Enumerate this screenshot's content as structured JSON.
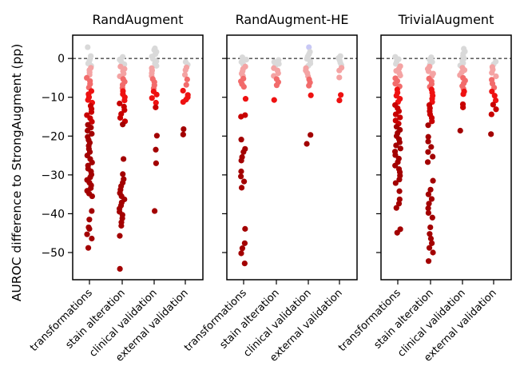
{
  "ylabel": "AUROC difference to StrongAugment (pp)",
  "categories": [
    "transformations",
    "stain alteration",
    "clinical validation",
    "external validation"
  ],
  "yticks": [
    0,
    -10,
    -20,
    -30,
    -40,
    -50
  ],
  "colors": {
    "grey": "#d9d9d9",
    "pink": "#f4a3a3",
    "salmon": "#f26b6b",
    "red": "#ee1111",
    "crimson": "#c80000",
    "darkred": "#a30000",
    "lavender": "#c8c8f5"
  },
  "chart_data": [
    {
      "type": "scatter",
      "title": "RandAugment",
      "ylim": [
        -57,
        6
      ],
      "series": [
        {
          "category": "transformations",
          "values": [
            2.9,
            0.6,
            -0.3,
            -0.8,
            -1.3,
            -1.9,
            -2.4,
            -3.0,
            -3.6,
            -4.2,
            -5.0,
            -5.8,
            -6.6,
            -7.5,
            -8.4,
            -9.2,
            -10.0,
            -10.7,
            -11.4,
            -12.2,
            -13.0,
            -13.8,
            -14.6,
            -15.4,
            -16.3,
            -17.1,
            -17.8,
            -18.6,
            -19.4,
            -20.2,
            -21.0,
            -21.7,
            -22.5,
            -23.3,
            -24.1,
            -25.0,
            -25.9,
            -26.8,
            -27.6,
            -28.4,
            -29.1,
            -29.9,
            -30.6,
            -31.3,
            -32.0,
            -32.7,
            -33.4,
            -34.1,
            -34.8,
            -35.5,
            -39.3,
            -41.5,
            -43.5,
            -43.9,
            -45.3,
            -46.4,
            -48.8
          ]
        },
        {
          "category": "stain alteration",
          "values": [
            0.4,
            -0.3,
            -0.9,
            -1.5,
            -2.1,
            -2.7,
            -3.3,
            -3.9,
            -4.6,
            -5.3,
            -6.0,
            -6.8,
            -7.6,
            -8.4,
            -9.2,
            -10.0,
            -10.8,
            -11.6,
            -12.4,
            -13.3,
            -14.3,
            -15.3,
            -16.2,
            -17.0,
            -25.9,
            -29.8,
            -31.1,
            -32.0,
            -32.9,
            -33.8,
            -34.7,
            -35.5,
            -36.3,
            -37.1,
            -37.9,
            -38.7,
            -39.5,
            -40.3,
            -41.2,
            -42.2,
            -43.1,
            -45.7,
            -54.2
          ]
        },
        {
          "category": "clinical validation",
          "values": [
            2.6,
            2.2,
            1.7,
            1.1,
            0.5,
            -0.1,
            -0.7,
            -1.3,
            -1.9,
            -2.5,
            -3.1,
            -3.8,
            -4.5,
            -5.3,
            -6.1,
            -6.9,
            -7.7,
            -8.5,
            -9.3,
            -10.2,
            -11.4,
            -12.6,
            -19.9,
            -23.5,
            -27.0,
            -39.3
          ]
        },
        {
          "category": "external validation",
          "values": [
            -0.9,
            -1.6,
            -2.3,
            -3.0,
            -4.2,
            -5.4,
            -6.8,
            -8.3,
            -9.4,
            -10.0,
            -10.6,
            -11.2,
            -18.2,
            -19.6
          ]
        }
      ]
    },
    {
      "type": "scatter",
      "title": "RandAugment-HE",
      "ylim": [
        -57,
        6
      ],
      "series": [
        {
          "category": "transformations",
          "values": [
            0.3,
            -0.3,
            -0.9,
            -1.5,
            -2.1,
            -2.7,
            -3.3,
            -3.9,
            -4.5,
            -5.2,
            -5.9,
            -6.6,
            -7.3,
            -10.4,
            -14.6,
            -15.0,
            -20.9,
            -23.3,
            -24.1,
            -25.4,
            -26.3,
            -29.1,
            -30.4,
            -31.7,
            -33.3,
            -43.9,
            -47.6,
            -48.9,
            -50.2,
            -52.8
          ]
        },
        {
          "category": "stain alteration",
          "values": [
            -0.4,
            -0.9,
            -1.4,
            -1.9,
            -2.5,
            -3.1,
            -3.8,
            -4.5,
            -5.3,
            -6.1,
            -6.9,
            -10.7
          ]
        },
        {
          "category": "clinical validation",
          "values": [
            2.9,
            1.7,
            1.1,
            0.5,
            -0.1,
            -0.7,
            -1.3,
            -1.9,
            -2.5,
            -3.1,
            -3.8,
            -4.6,
            -5.4,
            -6.2,
            -7.0,
            -9.5,
            -19.7,
            -22.0
          ]
        },
        {
          "category": "external validation",
          "values": [
            0.6,
            0.1,
            -0.5,
            -1.1,
            -1.7,
            -2.4,
            -3.1,
            -4.9,
            -9.4,
            -10.8
          ]
        }
      ]
    },
    {
      "type": "scatter",
      "title": "TrivialAugment",
      "ylim": [
        -57,
        6
      ],
      "series": [
        {
          "category": "transformations",
          "values": [
            0.4,
            -0.2,
            -0.8,
            -1.4,
            -2.0,
            -2.6,
            -3.2,
            -3.8,
            -4.4,
            -5.1,
            -5.8,
            -6.5,
            -7.2,
            -8.0,
            -8.8,
            -9.6,
            -10.4,
            -11.2,
            -12.0,
            -12.8,
            -13.6,
            -14.4,
            -15.2,
            -16.0,
            -16.8,
            -17.6,
            -18.4,
            -19.2,
            -20.0,
            -20.8,
            -21.6,
            -22.4,
            -23.2,
            -24.0,
            -24.9,
            -25.8,
            -26.7,
            -27.6,
            -28.5,
            -29.3,
            -30.2,
            -31.2,
            -32.1,
            -34.2,
            -36.3,
            -37.4,
            -38.5,
            -44.0,
            -44.9
          ]
        },
        {
          "category": "stain alteration",
          "values": [
            0.3,
            -0.3,
            -0.9,
            -1.5,
            -2.1,
            -2.7,
            -3.3,
            -3.9,
            -4.5,
            -5.2,
            -5.9,
            -6.6,
            -7.3,
            -8.0,
            -8.8,
            -9.6,
            -10.4,
            -11.2,
            -12.0,
            -12.8,
            -13.6,
            -14.4,
            -15.3,
            -16.2,
            -17.2,
            -20.2,
            -21.4,
            -22.8,
            -24.1,
            -25.3,
            -26.7,
            -31.5,
            -33.8,
            -35.0,
            -36.2,
            -37.4,
            -38.6,
            -39.8,
            -41.0,
            -43.5,
            -45.2,
            -46.4,
            -47.6,
            -48.8,
            -50.0,
            -52.2
          ]
        },
        {
          "category": "clinical validation",
          "values": [
            2.5,
            1.8,
            1.2,
            0.6,
            0.0,
            -0.6,
            -1.2,
            -1.8,
            -2.4,
            -3.0,
            -3.6,
            -4.3,
            -5.0,
            -5.7,
            -6.4,
            -7.1,
            -7.8,
            -8.5,
            -9.2,
            -11.8,
            -12.6,
            -18.6
          ]
        },
        {
          "category": "external validation",
          "values": [
            -0.8,
            -1.5,
            -2.2,
            -2.9,
            -3.7,
            -4.6,
            -5.5,
            -6.5,
            -7.5,
            -8.5,
            -9.6,
            -10.8,
            -11.9,
            -13.1,
            -14.4,
            -19.5
          ]
        }
      ]
    }
  ]
}
